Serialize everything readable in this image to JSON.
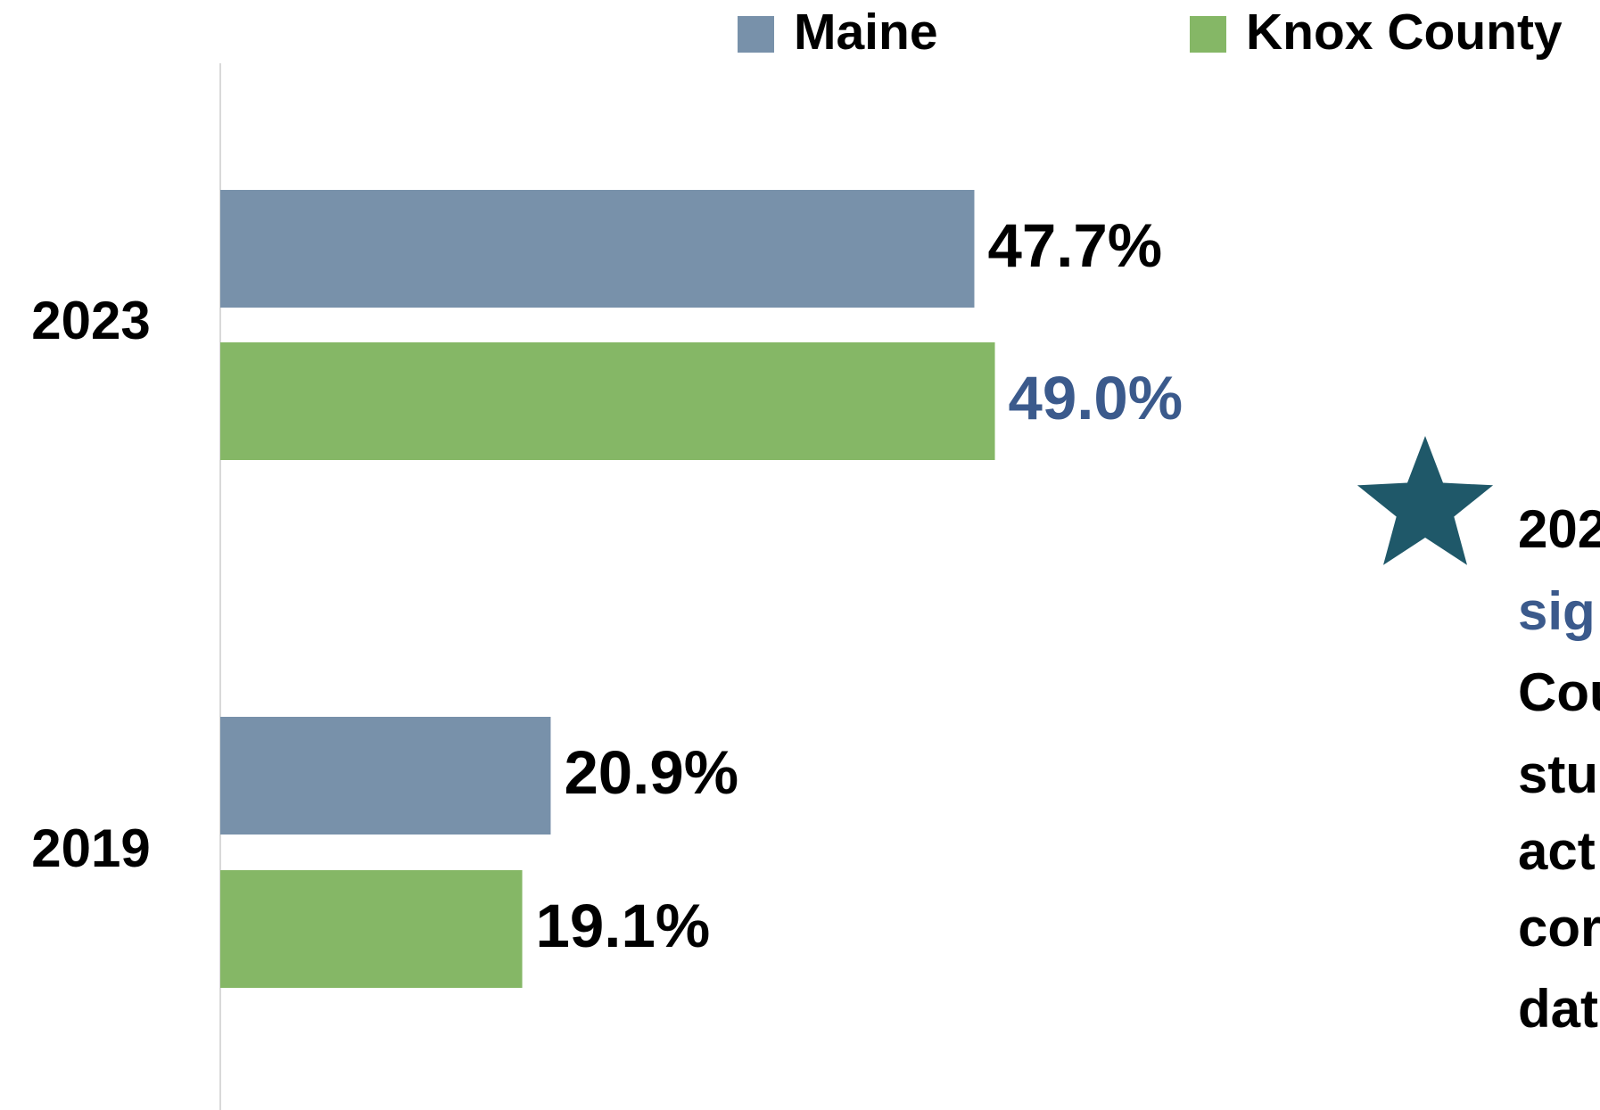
{
  "chart_data": {
    "type": "hbar",
    "categories": [
      "2023",
      "2019"
    ],
    "series": [
      {
        "name": "Maine",
        "color": "#7891aa",
        "values": [
          47.7,
          20.9
        ],
        "value_labels": [
          "47.7%",
          "20.9%"
        ],
        "value_label_colors": [
          "#000000",
          "#000000"
        ]
      },
      {
        "name": "Knox County",
        "color": "#85b766",
        "values": [
          49.0,
          19.1
        ],
        "value_labels": [
          "49.0%",
          "19.1%"
        ],
        "value_label_colors": [
          "#3b5a8c",
          "#000000"
        ]
      }
    ],
    "xlim": [
      0,
      80
    ],
    "annotation": {
      "lines": [
        "202",
        "sig",
        "Cou",
        "stu",
        "act",
        "cor",
        "dat"
      ],
      "colors": [
        "#000000",
        "#3b5a8c",
        "#000000",
        "#000000",
        "#000000",
        "#000000",
        "#000000"
      ],
      "star_color": "#1f5869"
    }
  }
}
